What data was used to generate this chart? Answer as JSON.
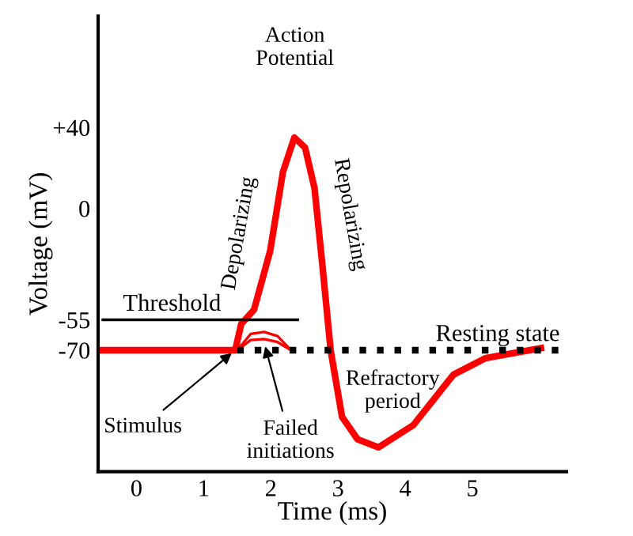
{
  "chart_data": {
    "type": "line",
    "xlabel": "Time (ms)",
    "ylabel": "Voltage (mV)",
    "xlim": [
      -0.57,
      6.4
    ],
    "ylim": [
      -130,
      95
    ],
    "xticks": [
      0,
      1,
      2,
      3,
      4,
      5
    ],
    "yticks": [
      {
        "value": 40,
        "label": "+40"
      },
      0,
      -55,
      -70
    ],
    "grid": false,
    "legend": false,
    "series": [
      {
        "color": "#ff0000",
        "x": [
          -0.5,
          1.47,
          1.56,
          1.75,
          1.99,
          2.18,
          2.35,
          2.51,
          2.65,
          2.77,
          2.89,
          3.06,
          3.29,
          3.6,
          4.12,
          4.72,
          5.19,
          6.02
        ],
        "values": [
          -70,
          -70,
          -57,
          -50,
          -21,
          18,
          35,
          30,
          10,
          -29,
          -70,
          -103,
          -114,
          -118,
          -107,
          -82,
          -74,
          -69
        ]
      },
      {
        "color": "#ff0000",
        "x": [
          1.5,
          1.7,
          1.9,
          2.1,
          2.3
        ],
        "values": [
          -70,
          -62,
          -61,
          -63,
          -70
        ]
      },
      {
        "color": "#ff0000",
        "x": [
          1.5,
          1.7,
          1.9,
          2.1,
          2.3
        ],
        "values": [
          -70,
          -65,
          -64.5,
          -66,
          -70
        ]
      },
      {
        "name": "Threshold",
        "color": "#000000",
        "x": [
          -0.5,
          2.4
        ],
        "values": [
          -55,
          -55
        ]
      },
      {
        "name": "Resting state",
        "color": "#000000",
        "line_style": "dotted",
        "x": [
          1.5,
          6.3
        ],
        "values": [
          -70,
          -70
        ]
      }
    ],
    "annotations": [
      "Action\nPotential",
      {
        "text": "Depolarizing",
        "x": 1.99,
        "y": -21
      },
      {
        "text": "Repolarizing",
        "x": 2.65,
        "y": 10
      },
      {
        "text": "Refractory\nperiod",
        "x": 3.29,
        "y": -114
      },
      {
        "text": "Stimulus",
        "x": 1.47,
        "y": -70
      },
      {
        "text": "Failed\ninitiations",
        "x": 1.9,
        "y": -66
      }
    ]
  }
}
